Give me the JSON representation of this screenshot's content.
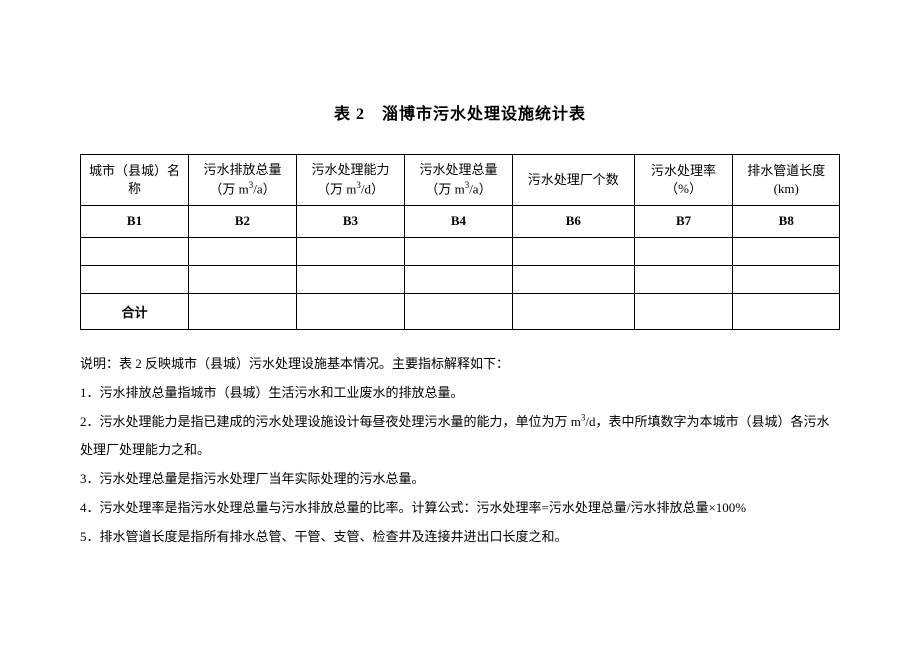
{
  "title": "表 2　淄博市污水处理设施统计表",
  "table": {
    "headers": [
      "城市（县城）名称",
      "污水排放总量\n（万 m³/a）",
      "污水处理能力\n（万 m³/d）",
      "污水处理总量\n（万 m³/a）",
      "污水处理厂个数",
      "污水处理率\n（%）",
      "排水管道长度\n(km)"
    ],
    "codes": [
      "B1",
      "B2",
      "B3",
      "B4",
      "B6",
      "B7",
      "B8"
    ],
    "total_label": "合计"
  },
  "notes": {
    "intro": "说明：表 2 反映城市（县城）污水处理设施基本情况。主要指标解释如下：",
    "items": [
      "1．污水排放总量指城市（县城）生活污水和工业废水的排放总量。",
      "2．污水处理能力是指已建成的污水处理设施设计每昼夜处理污水量的能力，单位为万 m³/d，表中所填数字为本城市（县城）各污水处理厂处理能力之和。",
      "3．污水处理总量是指污水处理厂当年实际处理的污水总量。",
      "4．污水处理率是指污水处理总量与污水排放总量的比率。计算公式：污水处理率=污水处理总量/污水排放总量×100%",
      "5．排水管道长度是指所有排水总管、干管、支管、检查井及连接井进出口长度之和。"
    ]
  },
  "style": {
    "background_color": "#ffffff",
    "border_color": "#000000",
    "title_fontsize": 16,
    "body_fontsize": 13,
    "note_fontsize": 13
  }
}
